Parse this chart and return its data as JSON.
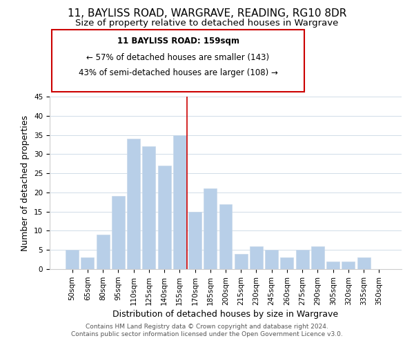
{
  "title": "11, BAYLISS ROAD, WARGRAVE, READING, RG10 8DR",
  "subtitle": "Size of property relative to detached houses in Wargrave",
  "xlabel": "Distribution of detached houses by size in Wargrave",
  "ylabel": "Number of detached properties",
  "bar_color": "#b8cfe8",
  "bar_edge_color": "#c8d8ea",
  "categories": [
    "50sqm",
    "65sqm",
    "80sqm",
    "95sqm",
    "110sqm",
    "125sqm",
    "140sqm",
    "155sqm",
    "170sqm",
    "185sqm",
    "200sqm",
    "215sqm",
    "230sqm",
    "245sqm",
    "260sqm",
    "275sqm",
    "290sqm",
    "305sqm",
    "320sqm",
    "335sqm",
    "350sqm"
  ],
  "values": [
    5,
    3,
    9,
    19,
    34,
    32,
    27,
    35,
    15,
    21,
    17,
    4,
    6,
    5,
    3,
    5,
    6,
    2,
    2,
    3,
    0
  ],
  "ylim": [
    0,
    45
  ],
  "yticks": [
    0,
    5,
    10,
    15,
    20,
    25,
    30,
    35,
    40,
    45
  ],
  "annotation_text_line1": "11 BAYLISS ROAD: 159sqm",
  "annotation_text_line2": "← 57% of detached houses are smaller (143)",
  "annotation_text_line3": "43% of semi-detached houses are larger (108) →",
  "footer_line1": "Contains HM Land Registry data © Crown copyright and database right 2024.",
  "footer_line2": "Contains public sector information licensed under the Open Government Licence v3.0.",
  "background_color": "#ffffff",
  "grid_color": "#d0dce8",
  "annotation_box_color": "#ffffff",
  "annotation_box_edge_color": "#cc0000",
  "property_line_color": "#cc0000",
  "title_fontsize": 11,
  "subtitle_fontsize": 9.5,
  "axis_label_fontsize": 9,
  "tick_fontsize": 7.5,
  "annotation_fontsize": 8.5,
  "footer_fontsize": 6.5
}
